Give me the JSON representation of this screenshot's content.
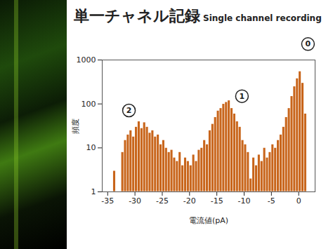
{
  "chart_data": {
    "type": "histogram",
    "title": "単一チャネル記録",
    "subtitle": "Single channel recording",
    "x_label": "電流値(pA)",
    "y_label": "頻度",
    "bins": [
      -34,
      -33.5,
      -33,
      -32.5,
      -32,
      -31.5,
      -31,
      -30.5,
      -30,
      -29.5,
      -29,
      -28.5,
      -28,
      -27.5,
      -27,
      -26.5,
      -26,
      -25.5,
      -25,
      -24.5,
      -24,
      -23.5,
      -23,
      -22.5,
      -22,
      -21.5,
      -21,
      -20.5,
      -20,
      -19.5,
      -19,
      -18.5,
      -18,
      -17.5,
      -17,
      -16.5,
      -16,
      -15.5,
      -15,
      -14.5,
      -14,
      -13.5,
      -13,
      -12.5,
      -12,
      -11.5,
      -11,
      -10.5,
      -10,
      -9.5,
      -9,
      -8.5,
      -8,
      -7.5,
      -7,
      -6.5,
      -6,
      -5.5,
      -5,
      -4.5,
      -4,
      -3.5,
      -3,
      -2.5,
      -2,
      -1.5,
      -1,
      -0.5,
      0,
      0.5,
      1,
      1.5
    ],
    "counts": [
      3,
      0,
      0,
      8,
      15,
      20,
      25,
      18,
      30,
      40,
      28,
      38,
      30,
      22,
      25,
      18,
      20,
      12,
      15,
      10,
      8,
      9,
      6,
      5,
      8,
      4,
      6,
      5,
      4,
      7,
      5,
      9,
      10,
      15,
      12,
      25,
      35,
      50,
      70,
      80,
      100,
      110,
      120,
      80,
      60,
      40,
      30,
      15,
      12,
      8,
      2,
      6,
      4,
      7,
      5,
      10,
      6,
      8,
      12,
      10,
      15,
      20,
      30,
      50,
      80,
      150,
      250,
      380,
      550,
      300,
      60
    ],
    "color": "#c8651b",
    "log": "y",
    "xlim": [
      -36,
      3
    ],
    "xticks": [
      -35,
      -30,
      -25,
      -20,
      -15,
      -10,
      -5,
      0
    ],
    "ylim": [
      1,
      1000
    ],
    "yticks": [
      1,
      10,
      100,
      1000
    ],
    "annotations": [
      {
        "text": "0",
        "x": 1.7,
        "y": 2300
      },
      {
        "text": "1",
        "x": -10.4,
        "y": 150
      },
      {
        "text": "2",
        "x": -31.1,
        "y": 71
      }
    ]
  }
}
